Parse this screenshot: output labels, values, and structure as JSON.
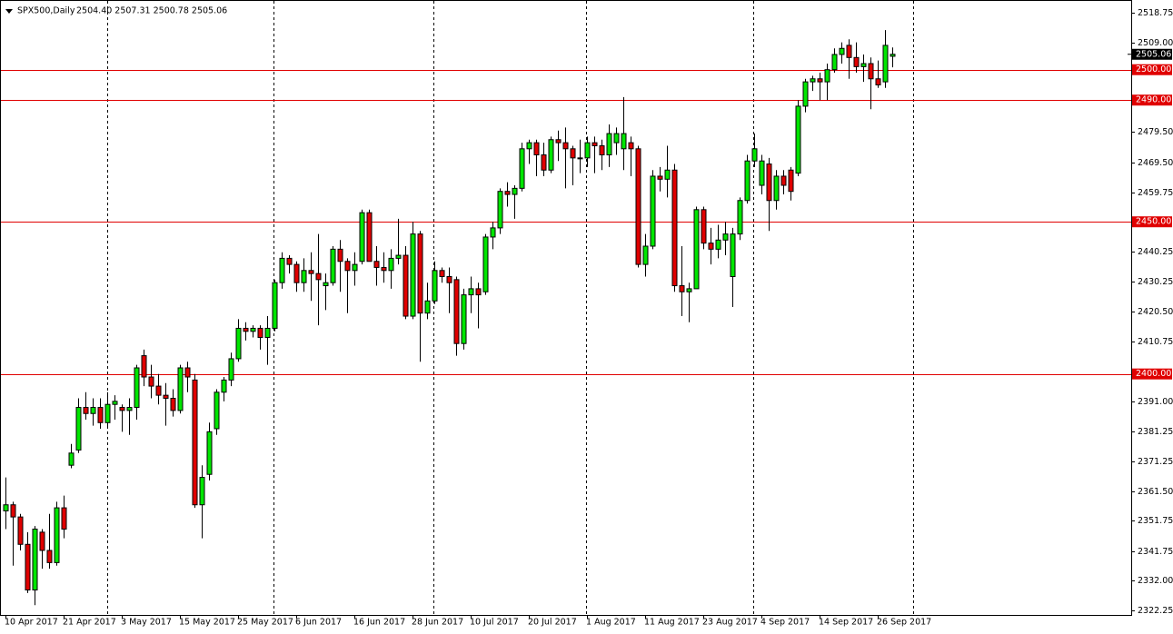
{
  "chart_data": {
    "type": "candlestick",
    "title": "SPX500,Daily",
    "subtitle": "2504.40 2507.31 2500.78 2505.06",
    "up_color": "#00e600",
    "down_color": "#e00000",
    "ylim": [
      2320.8,
      2522.9
    ],
    "yticks": [
      2518.75,
      {
        "value": 2509,
        "label": "2509.00"
      },
      {
        "value": 2479.5,
        "label": "2479.50"
      },
      {
        "value": 2469.5,
        "label": "2469.50"
      },
      2459.75,
      2440.25,
      2430.25,
      {
        "value": 2420.5,
        "label": "2420.50"
      },
      2410.75,
      {
        "value": 2391,
        "label": "2391.00"
      },
      2381.25,
      2371.25,
      {
        "value": 2361.5,
        "label": "2361.50"
      },
      2351.75,
      2341.75,
      {
        "value": 2332,
        "label": "2332.00"
      },
      2322.25
    ],
    "hlines": [
      {
        "value": 2500,
        "label": "2500.00",
        "color": "#e00000"
      },
      {
        "value": 2490,
        "label": "2490.00",
        "color": "#e00000"
      },
      {
        "value": 2450,
        "label": "2450.00",
        "color": "#e00000"
      },
      {
        "value": 2400,
        "label": "2400.00",
        "color": "#e00000"
      }
    ],
    "last_price": {
      "value": 2505.06,
      "label": "2505.06"
    },
    "categories": [
      "10 Apr 2017",
      null,
      null,
      null,
      null,
      null,
      null,
      null,
      "21 Apr 2017",
      null,
      null,
      null,
      null,
      null,
      null,
      null,
      "3 May 2017",
      null,
      null,
      null,
      null,
      null,
      null,
      null,
      "15 May 2017",
      null,
      null,
      null,
      null,
      null,
      null,
      null,
      "25 May 2017",
      null,
      null,
      null,
      null,
      null,
      null,
      null,
      "6 Jun 2017",
      null,
      null,
      null,
      null,
      null,
      null,
      null,
      "16 Jun 2017",
      null,
      null,
      null,
      null,
      null,
      null,
      null,
      "28 Jun 2017",
      null,
      null,
      null,
      null,
      null,
      null,
      null,
      "10 Jul 2017",
      null,
      null,
      null,
      null,
      null,
      null,
      null,
      "20 Jul 2017",
      null,
      null,
      null,
      null,
      null,
      null,
      null,
      "1 Aug 2017",
      null,
      null,
      null,
      null,
      null,
      null,
      null,
      "11 Aug 2017",
      null,
      null,
      null,
      null,
      null,
      null,
      null,
      "23 Aug 2017",
      null,
      null,
      null,
      null,
      null,
      null,
      null,
      "4 Sep 2017",
      null,
      null,
      null,
      null,
      null,
      null,
      null,
      "14 Sep 2017",
      null,
      null,
      null,
      null,
      null,
      null,
      null,
      "26 Sep 2017",
      null,
      null
    ],
    "open": [
      2355,
      2357,
      2353,
      2344,
      2329,
      2348,
      2342,
      2338,
      2356,
      2370,
      2375,
      2389,
      2387,
      2389,
      2384,
      2390,
      2389,
      2388,
      2389,
      2406,
      2399,
      2396,
      2393,
      2392,
      2388,
      2402,
      2398,
      2357,
      2367,
      2382,
      2394,
      2398,
      2405,
      2415,
      2414,
      2415,
      2412,
      2415,
      2430,
      2438,
      2436,
      2430,
      2434,
      2433,
      2429,
      2430,
      2441,
      2437,
      2434,
      2437,
      2453,
      2437,
      2435,
      2434,
      2438,
      2439,
      2419,
      2446,
      2420,
      2424,
      2434,
      2432,
      2431,
      2410,
      2426,
      2428,
      2427,
      2445,
      2448,
      2460,
      2459,
      2461,
      2474,
      2476,
      2472,
      2467,
      2477,
      2476,
      2474,
      2471,
      2471,
      2476,
      2475,
      2472,
      2476,
      2474,
      2476,
      2474,
      2436,
      2442,
      2465,
      2464,
      2467,
      2429,
      2427,
      2428,
      2454,
      2443,
      2441,
      2444,
      2432,
      2446,
      2457,
      2470,
      2462,
      2469,
      2457,
      2465,
      2467,
      2466,
      2488,
      2496,
      2497,
      2496,
      2500,
      2505,
      2508,
      2504,
      2501,
      2502,
      2497,
      2496,
      2504.4
    ],
    "high": [
      2366,
      2358,
      2354,
      2348,
      2350,
      2349,
      2354,
      2358,
      2360,
      2377,
      2392,
      2394,
      2392,
      2392,
      2394,
      2393,
      2390,
      2392,
      2403,
      2408,
      2403,
      2400,
      2397,
      2395,
      2403,
      2404,
      2400,
      2370,
      2384,
      2395,
      2399,
      2407,
      2418,
      2417,
      2416,
      2416,
      2419,
      2431,
      2440,
      2439,
      2437,
      2438,
      2440,
      2446,
      2433,
      2442,
      2444,
      2438,
      2440,
      2454,
      2454,
      2442,
      2440,
      2441,
      2451,
      2442,
      2450,
      2447,
      2430,
      2437,
      2435,
      2435,
      2432,
      2428,
      2432,
      2430,
      2446,
      2450,
      2461,
      2463,
      2462,
      2476,
      2477,
      2477,
      2476,
      2478,
      2480,
      2481,
      2475,
      2477,
      2478,
      2478,
      2477,
      2482,
      2481,
      2491,
      2478,
      2475,
      2446,
      2467,
      2468,
      2475,
      2469,
      2442,
      2430,
      2455,
      2455,
      2448,
      2449,
      2450,
      2448,
      2458,
      2472,
      2479,
      2472,
      2471,
      2467,
      2467,
      2468,
      2490,
      2497,
      2498,
      2499,
      2502,
      2507,
      2509,
      2510,
      2509,
      2505,
      2504,
      2503,
      2513,
      2507.31
    ],
    "low": [
      2349,
      2337,
      2342,
      2328,
      2324,
      2336,
      2336,
      2337,
      2346,
      2369,
      2374,
      2385,
      2383,
      2382,
      2382,
      2385,
      2381,
      2380,
      2385,
      2396,
      2392,
      2390,
      2383,
      2386,
      2387,
      2394,
      2356,
      2346,
      2365,
      2380,
      2391,
      2396,
      2404,
      2411,
      2412,
      2408,
      2403,
      2414,
      2428,
      2433,
      2427,
      2427,
      2424,
      2416,
      2421,
      2429,
      2427,
      2420,
      2429,
      2436,
      2437,
      2429,
      2430,
      2428,
      2436,
      2418,
      2418,
      2404,
      2418,
      2423,
      2430,
      2420,
      2406,
      2408,
      2420,
      2415,
      2426,
      2441,
      2446,
      2455,
      2451,
      2460,
      2469,
      2465,
      2465,
      2466,
      2470,
      2461,
      2462,
      2466,
      2468,
      2466,
      2467,
      2468,
      2472,
      2467,
      2465,
      2435,
      2432,
      2441,
      2460,
      2458,
      2427,
      2419,
      2417,
      2428,
      2441,
      2436,
      2438,
      2439,
      2422,
      2444,
      2456,
      2468,
      2459,
      2447,
      2454,
      2459,
      2457,
      2465,
      2486,
      2493,
      2490,
      2490,
      2499,
      2502,
      2497,
      2499,
      2496,
      2487,
      2494,
      2494,
      2500.78
    ],
    "close": [
      2357,
      2353,
      2344,
      2329,
      2349,
      2342,
      2338,
      2356,
      2349,
      2374,
      2389,
      2387,
      2389,
      2384,
      2390,
      2391,
      2388,
      2389,
      2402,
      2399,
      2396,
      2393,
      2392,
      2388,
      2402,
      2399,
      2357,
      2366,
      2381,
      2394,
      2398,
      2405,
      2415,
      2414,
      2415,
      2412,
      2415,
      2430,
      2438,
      2436,
      2430,
      2434,
      2433,
      2431,
      2430,
      2441,
      2437,
      2434,
      2436,
      2453,
      2437,
      2435,
      2434,
      2438,
      2439,
      2419,
      2446,
      2420,
      2424,
      2434,
      2432,
      2430,
      2410,
      2426,
      2428,
      2426,
      2445,
      2448,
      2460,
      2459,
      2461,
      2474,
      2476,
      2472,
      2467,
      2477,
      2476,
      2474,
      2471,
      2471,
      2476,
      2475,
      2472,
      2479,
      2479,
      2479,
      2474,
      2436,
      2442,
      2465,
      2464,
      2467,
      2429,
      2427,
      2428,
      2454,
      2443,
      2441,
      2444,
      2446,
      2446,
      2457,
      2470,
      2474,
      2470,
      2457,
      2465,
      2462,
      2460,
      2488,
      2496,
      2497,
      2496,
      2500,
      2505,
      2507,
      2504,
      2501,
      2502,
      2497,
      2495,
      2508,
      2505.06
    ]
  }
}
